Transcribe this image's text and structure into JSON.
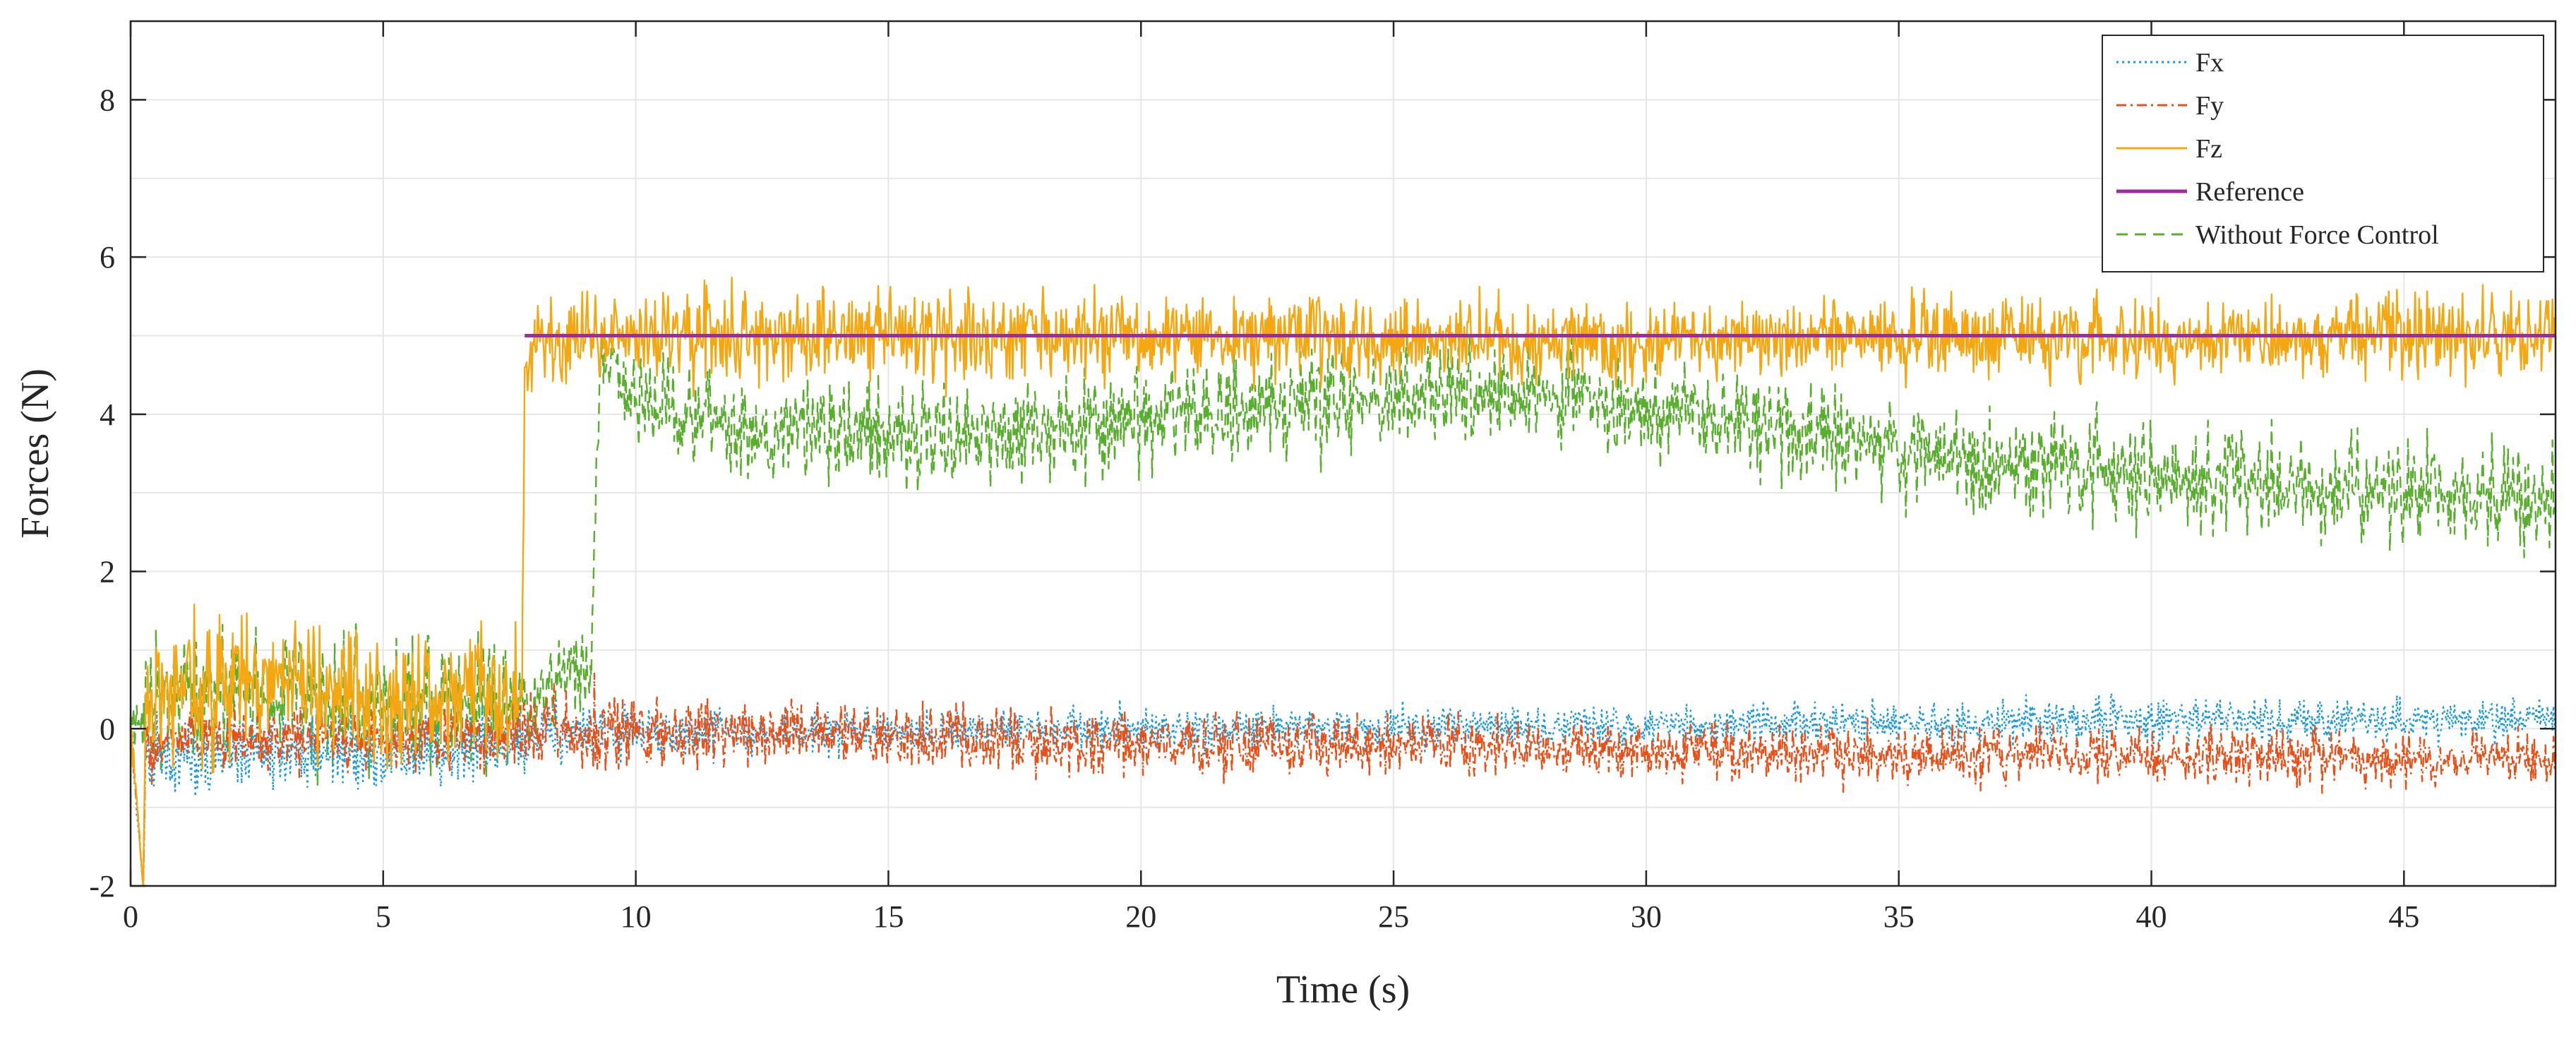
{
  "chart_data": {
    "type": "line",
    "title": "",
    "xlabel": "Time (s)",
    "ylabel": "Forces (N)",
    "xlim": [
      0,
      48
    ],
    "ylim": [
      -2,
      9
    ],
    "xticks": [
      0,
      5,
      10,
      15,
      20,
      25,
      30,
      35,
      40,
      45
    ],
    "yticks": [
      -2,
      0,
      2,
      4,
      6,
      8
    ],
    "grid": true,
    "legend_position": "top-right",
    "series": [
      {
        "name": "Fx",
        "color": "#1f9ad6",
        "style": "dotted",
        "x": [
          0,
          0.25,
          0.3,
          0.5,
          1,
          2,
          3,
          4,
          5,
          6,
          7,
          7.8,
          8.5,
          10,
          15,
          20,
          25,
          28,
          30,
          35,
          40,
          45,
          48
        ],
        "y": [
          0,
          -2,
          -0.4,
          -0.3,
          -0.3,
          -0.3,
          -0.3,
          -0.3,
          -0.3,
          -0.3,
          -0.3,
          -0.2,
          -0.1,
          -0.05,
          -0.05,
          0,
          0,
          0.02,
          0.05,
          0.08,
          0.1,
          0.1,
          0.1
        ],
        "noise": [
          0.4,
          0,
          0.4,
          0.5,
          0.5,
          0.5,
          0.5,
          0.5,
          0.5,
          0.5,
          0.5,
          0.45,
          0.4,
          0.35,
          0.3,
          0.3,
          0.3,
          0.3,
          0.3,
          0.3,
          0.3,
          0.28,
          0.26
        ]
      },
      {
        "name": "Fy",
        "color": "#e8501a",
        "style": "dash-dot",
        "x": [
          0,
          0.25,
          0.3,
          0.5,
          1,
          3,
          5,
          7,
          7.8,
          9.5,
          10,
          15,
          20,
          25,
          30,
          35,
          40,
          45,
          48
        ],
        "y": [
          0,
          -2,
          -0.3,
          -0.2,
          -0.15,
          -0.15,
          -0.15,
          -0.1,
          0,
          0,
          -0.05,
          -0.12,
          -0.18,
          -0.22,
          -0.28,
          -0.33,
          -0.35,
          -0.38,
          -0.38
        ],
        "noise": [
          0.4,
          0,
          0.4,
          0.4,
          0.4,
          0.4,
          0.4,
          0.4,
          0.6,
          0.6,
          0.5,
          0.45,
          0.45,
          0.4,
          0.4,
          0.4,
          0.4,
          0.35,
          0.35
        ]
      },
      {
        "name": "Fz",
        "color": "#f3a712",
        "style": "solid",
        "x": [
          0,
          0.25,
          0.3,
          0.5,
          1,
          2,
          3,
          4,
          5,
          6,
          7,
          7.75,
          7.8,
          8,
          9,
          10,
          15,
          20,
          25,
          30,
          35,
          40,
          45,
          48
        ],
        "y": [
          0,
          -2,
          0.2,
          0.5,
          0.6,
          0.55,
          0.5,
          0.45,
          0.45,
          0.4,
          0.4,
          0.4,
          4.6,
          4.9,
          4.95,
          5,
          5,
          5,
          4.95,
          4.95,
          5,
          4.95,
          5,
          5
        ],
        "noise": [
          0.4,
          0,
          0.5,
          1.0,
          1.2,
          1.1,
          1.0,
          0.9,
          0.9,
          0.9,
          0.9,
          0.8,
          0.4,
          0.55,
          0.6,
          0.65,
          0.65,
          0.6,
          0.55,
          0.55,
          0.55,
          0.55,
          0.55,
          0.55
        ]
      },
      {
        "name": "Reference",
        "color": "#9b2d9e",
        "style": "solid",
        "x": [
          7.8,
          48
        ],
        "y": [
          5,
          5
        ],
        "noise": [
          0,
          0
        ]
      },
      {
        "name": "Without Force Control",
        "color": "#5aae2f",
        "style": "dashed",
        "x": [
          0,
          0.5,
          1,
          2,
          3,
          4,
          5,
          6,
          7,
          7.8,
          8.5,
          9.1,
          9.3,
          10,
          12,
          15,
          17,
          20,
          25,
          28,
          30,
          33,
          36,
          40,
          45,
          48
        ],
        "y": [
          0,
          0.4,
          0.5,
          0.5,
          0.4,
          0.35,
          0.3,
          0.3,
          0.3,
          0.3,
          0.6,
          0.8,
          4.6,
          4.2,
          3.8,
          3.7,
          3.75,
          3.9,
          4.2,
          4.3,
          4.1,
          3.8,
          3.5,
          3.2,
          3.0,
          2.9
        ],
        "noise": [
          0.3,
          0.9,
          1.0,
          1.0,
          1.0,
          0.9,
          0.9,
          0.9,
          0.9,
          0.6,
          0.6,
          0.6,
          0.5,
          0.6,
          0.7,
          0.7,
          0.7,
          0.7,
          0.7,
          0.7,
          0.7,
          0.7,
          0.7,
          0.7,
          0.7,
          0.7
        ]
      }
    ]
  }
}
